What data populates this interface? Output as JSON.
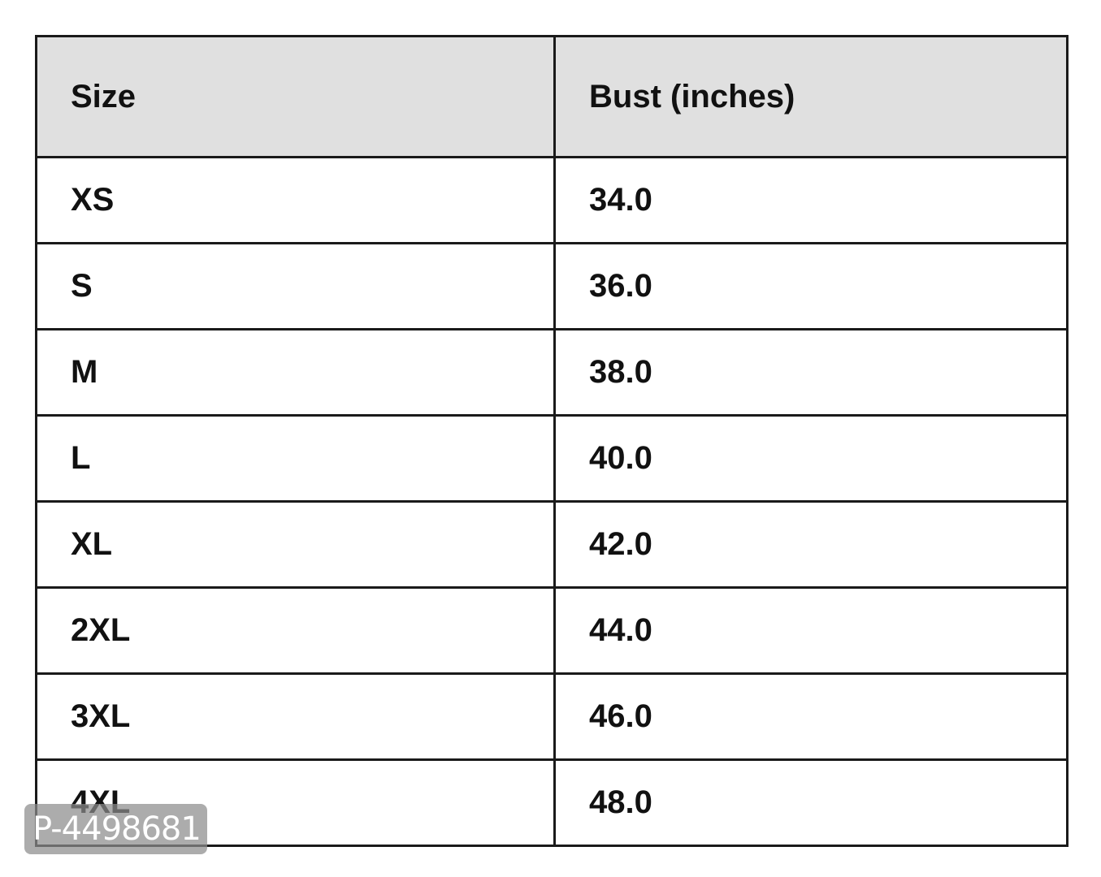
{
  "table": {
    "headers": [
      "Size",
      "Bust (inches)"
    ],
    "rows": [
      [
        "XS",
        "34.0"
      ],
      [
        "S",
        "36.0"
      ],
      [
        "M",
        "38.0"
      ],
      [
        "L",
        "40.0"
      ],
      [
        "XL",
        "42.0"
      ],
      [
        "2XL",
        "44.0"
      ],
      [
        "3XL",
        "46.0"
      ],
      [
        "4XL",
        "48.0"
      ]
    ]
  },
  "watermark": "P-4498681"
}
